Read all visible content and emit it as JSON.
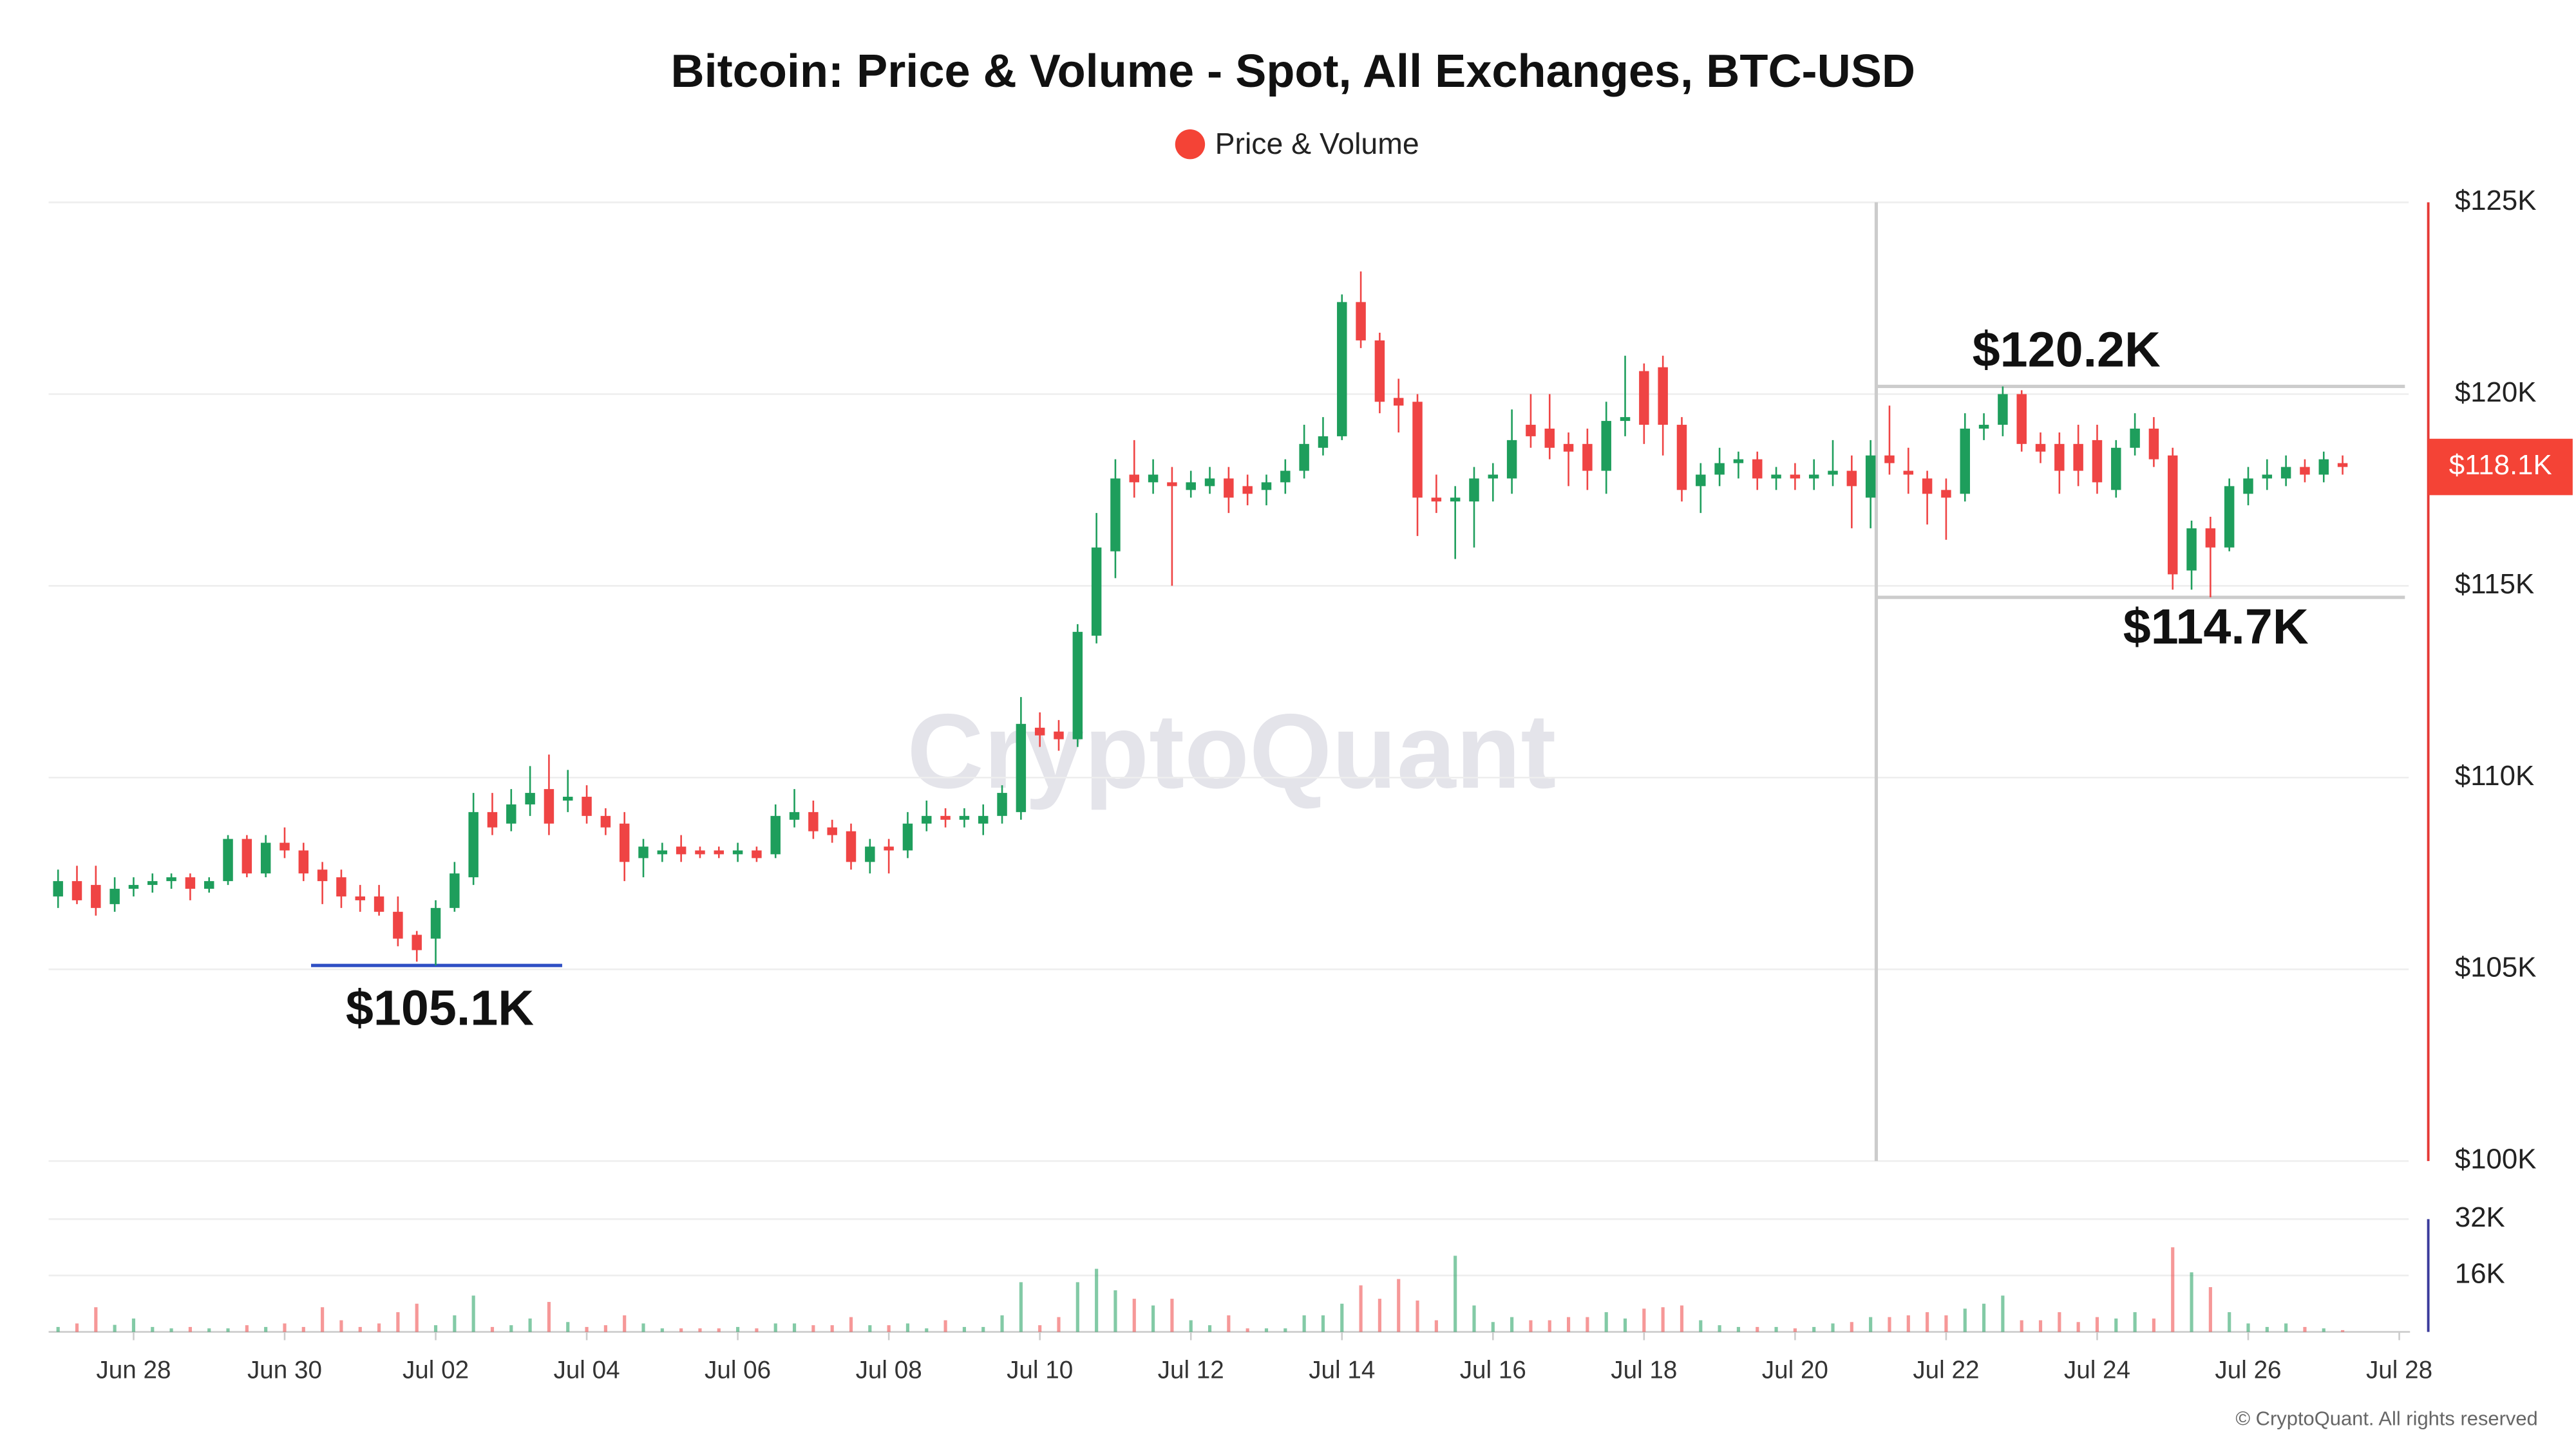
{
  "chart_data": {
    "type": "candlestick",
    "title": "Bitcoin: Price & Volume - Spot, All Exchanges, BTC-USD",
    "series": [
      {
        "name": "Price & Volume",
        "color": "#f44336",
        "up_color": "#1e9e5c",
        "down_color": "#ef4444",
        "open": [
          106.9,
          107.3,
          107.2,
          106.7,
          107.1,
          107.2,
          107.3,
          107.4,
          107.1,
          107.3,
          108.4,
          107.5,
          108.3,
          108.1,
          107.6,
          107.4,
          106.9,
          106.9,
          106.5,
          105.9,
          105.8,
          106.6,
          107.4,
          109.1,
          108.8,
          109.3,
          109.7,
          109.4,
          109.5,
          109.0,
          108.8,
          107.9,
          108.0,
          108.2,
          108.1,
          108.1,
          108.0,
          108.1,
          108.0,
          108.9,
          109.1,
          108.7,
          108.6,
          107.8,
          108.2,
          108.1,
          108.8,
          109.0,
          108.9,
          108.8,
          109.0,
          109.1,
          111.3,
          111.2,
          111.0,
          113.7,
          115.9,
          117.9,
          117.7,
          117.7,
          117.5,
          117.6,
          117.8,
          117.6,
          117.5,
          117.7,
          118.0,
          118.6,
          118.9,
          122.4,
          121.4,
          119.9,
          119.8,
          117.3,
          117.2,
          117.2,
          117.8,
          117.8,
          119.2,
          119.1,
          118.7,
          118.7,
          118.0,
          119.3,
          120.6,
          120.7,
          119.2,
          117.6,
          117.9,
          118.2,
          118.3,
          117.8,
          117.9,
          117.8,
          117.9,
          118.0,
          117.3,
          118.4,
          118.0,
          117.8,
          117.5,
          117.4,
          119.1,
          119.2,
          120.0,
          118.7,
          118.7,
          118.7,
          118.8,
          117.5,
          118.6,
          119.1,
          118.4,
          115.4,
          116.5,
          116.0,
          117.4,
          117.8,
          117.8,
          118.1,
          117.9,
          118.2
        ],
        "high": [
          107.6,
          107.7,
          107.7,
          107.4,
          107.4,
          107.5,
          107.5,
          107.5,
          107.4,
          108.5,
          108.5,
          108.5,
          108.7,
          108.3,
          107.8,
          107.6,
          107.2,
          107.2,
          106.9,
          106.0,
          106.8,
          107.8,
          109.6,
          109.6,
          109.7,
          110.3,
          110.6,
          110.2,
          109.8,
          109.2,
          109.1,
          108.4,
          108.3,
          108.5,
          108.2,
          108.2,
          108.3,
          108.2,
          109.3,
          109.7,
          109.4,
          108.9,
          108.8,
          108.4,
          108.4,
          109.1,
          109.4,
          109.2,
          109.2,
          109.3,
          109.8,
          112.1,
          111.7,
          111.5,
          114.0,
          116.9,
          118.3,
          118.8,
          118.3,
          118.1,
          118.0,
          118.1,
          118.1,
          117.9,
          117.9,
          118.3,
          119.2,
          119.4,
          122.6,
          123.2,
          121.6,
          120.4,
          120.0,
          117.9,
          117.6,
          118.1,
          118.2,
          119.6,
          120.0,
          120.0,
          119.0,
          119.1,
          119.8,
          121.0,
          120.8,
          121.0,
          119.4,
          118.2,
          118.6,
          118.5,
          118.5,
          118.1,
          118.2,
          118.3,
          118.8,
          118.4,
          118.8,
          119.7,
          118.6,
          118.0,
          117.8,
          119.5,
          119.5,
          120.2,
          120.1,
          119.0,
          119.0,
          119.2,
          119.2,
          118.8,
          119.5,
          119.4,
          118.6,
          116.7,
          116.8,
          117.8,
          118.1,
          118.3,
          118.4,
          118.3,
          118.5,
          118.4
        ],
        "low": [
          106.6,
          106.7,
          106.4,
          106.5,
          106.9,
          107.0,
          107.1,
          106.8,
          107.0,
          107.2,
          107.4,
          107.4,
          107.9,
          107.3,
          106.7,
          106.6,
          106.5,
          106.4,
          105.6,
          105.2,
          105.1,
          106.5,
          107.2,
          108.5,
          108.6,
          109.0,
          108.5,
          109.1,
          108.8,
          108.5,
          107.3,
          107.4,
          107.8,
          107.8,
          107.9,
          107.9,
          107.8,
          107.8,
          107.9,
          108.7,
          108.4,
          108.3,
          107.6,
          107.5,
          107.5,
          107.9,
          108.6,
          108.7,
          108.7,
          108.5,
          108.8,
          108.9,
          110.8,
          110.7,
          110.8,
          113.5,
          115.2,
          117.3,
          117.4,
          115.0,
          117.3,
          117.4,
          116.9,
          117.1,
          117.1,
          117.4,
          117.8,
          118.4,
          118.8,
          121.2,
          119.5,
          119.0,
          116.3,
          116.9,
          115.7,
          116.0,
          117.2,
          117.4,
          118.6,
          118.3,
          117.6,
          117.5,
          117.4,
          118.9,
          118.7,
          118.4,
          117.2,
          116.9,
          117.6,
          117.8,
          117.5,
          117.5,
          117.5,
          117.5,
          117.6,
          116.5,
          116.5,
          117.9,
          117.4,
          116.6,
          116.2,
          117.2,
          118.8,
          118.9,
          118.5,
          118.2,
          117.4,
          117.6,
          117.4,
          117.3,
          118.4,
          118.1,
          114.9,
          114.9,
          114.7,
          115.9,
          117.1,
          117.5,
          117.6,
          117.7,
          117.7,
          117.9
        ],
        "close": [
          107.3,
          106.8,
          106.6,
          107.1,
          107.2,
          107.3,
          107.4,
          107.1,
          107.3,
          108.4,
          107.5,
          108.3,
          108.1,
          107.5,
          107.3,
          106.9,
          106.8,
          106.5,
          105.8,
          105.5,
          106.6,
          107.5,
          109.1,
          108.7,
          109.3,
          109.6,
          108.8,
          109.5,
          109.0,
          108.7,
          107.8,
          108.2,
          108.1,
          108.0,
          108.0,
          108.0,
          108.1,
          107.9,
          109.0,
          109.1,
          108.6,
          108.5,
          107.8,
          108.2,
          108.1,
          108.8,
          109.0,
          108.9,
          109.0,
          109.0,
          109.6,
          111.4,
          111.1,
          111.0,
          113.8,
          116.0,
          117.8,
          117.7,
          117.9,
          117.6,
          117.7,
          117.8,
          117.3,
          117.4,
          117.7,
          118.0,
          118.7,
          118.9,
          122.4,
          121.4,
          119.8,
          119.7,
          117.3,
          117.2,
          117.3,
          117.8,
          117.9,
          118.8,
          118.9,
          118.6,
          118.5,
          118.0,
          119.3,
          119.4,
          119.2,
          119.2,
          117.5,
          117.9,
          118.2,
          118.3,
          117.8,
          117.9,
          117.8,
          117.9,
          118.0,
          117.6,
          118.4,
          118.2,
          117.9,
          117.4,
          117.3,
          119.1,
          119.2,
          120.0,
          118.7,
          118.5,
          118.0,
          118.0,
          117.7,
          118.6,
          119.1,
          118.3,
          115.3,
          116.5,
          116.0,
          117.6,
          117.8,
          117.9,
          118.1,
          117.9,
          118.3,
          118.1
        ],
        "volume": [
          1.4,
          2.4,
          7,
          2,
          3.8,
          1.4,
          1,
          1.4,
          1,
          1,
          1.9,
          1.4,
          2.4,
          1.4,
          7,
          3.3,
          1.4,
          2.4,
          5.6,
          8,
          1.9,
          4.7,
          10.3,
          1.4,
          1.9,
          3.8,
          8.5,
          2.8,
          1.4,
          1.9,
          4.7,
          2.4,
          1,
          1,
          1,
          1,
          1.4,
          1,
          2.4,
          2.4,
          1.9,
          1.9,
          4.2,
          1.9,
          1.9,
          2.4,
          1,
          3.3,
          1.4,
          1.4,
          4.7,
          14.1,
          1.9,
          4.2,
          14.1,
          17.9,
          11.8,
          9.4,
          7.5,
          9.4,
          3.3,
          1.9,
          4.7,
          1,
          1,
          1,
          4.7,
          4.7,
          8,
          13.2,
          9.4,
          15,
          8.9,
          3.3,
          21.6,
          7.5,
          2.8,
          4.2,
          3.3,
          3.3,
          4.2,
          4.2,
          5.6,
          3.8,
          6.6,
          7,
          7.5,
          3.3,
          1.9,
          1.4,
          1.4,
          1.4,
          1,
          1.4,
          2.4,
          2.8,
          4.2,
          4.2,
          4.7,
          5.6,
          4.7,
          6.6,
          8,
          10.3,
          3.3,
          3.3,
          5.6,
          2.8,
          4.2,
          3.8,
          5.6,
          3.8,
          24,
          16.9,
          12.7,
          5.6,
          2.4,
          1.4,
          2.4,
          1.4,
          1,
          0.5
        ]
      }
    ],
    "xlim": [
      -0.5,
      124.5
    ],
    "xticks": [
      {
        "value": 4,
        "label": "Jun 28"
      },
      {
        "value": 12,
        "label": "Jun 30"
      },
      {
        "value": 20,
        "label": "Jul 02"
      },
      {
        "value": 28,
        "label": "Jul 04"
      },
      {
        "value": 36,
        "label": "Jul 06"
      },
      {
        "value": 44,
        "label": "Jul 08"
      },
      {
        "value": 52,
        "label": "Jul 10"
      },
      {
        "value": 60,
        "label": "Jul 12"
      },
      {
        "value": 68,
        "label": "Jul 14"
      },
      {
        "value": 76,
        "label": "Jul 16"
      },
      {
        "value": 84,
        "label": "Jul 18"
      },
      {
        "value": 92,
        "label": "Jul 20"
      },
      {
        "value": 100,
        "label": "Jul 22"
      },
      {
        "value": 108,
        "label": "Jul 24"
      },
      {
        "value": 116,
        "label": "Jul 26"
      },
      {
        "value": 124,
        "label": "Jul 28"
      }
    ],
    "ylim": [
      100,
      125
    ],
    "yticks": [
      {
        "value": 100,
        "label": "$100K"
      },
      {
        "value": 105,
        "label": "$105K"
      },
      {
        "value": 110,
        "label": "$110K"
      },
      {
        "value": 115,
        "label": "$115K"
      },
      {
        "value": 120,
        "label": "$120K"
      },
      {
        "value": 125,
        "label": "$125K"
      }
    ],
    "y2lim": [
      0,
      32
    ],
    "y2ticks": [
      {
        "value": 16,
        "label": "16K"
      },
      {
        "value": 32,
        "label": "32K"
      }
    ],
    "grid": true,
    "current_price": {
      "value": 118.1,
      "label": "$118.1K"
    },
    "annotations": [
      {
        "label": "$105.1K",
        "value": 105.1,
        "color": "#2f4fc4"
      },
      {
        "label": "$120.2K",
        "value": 120.2,
        "color": "#cccccc"
      },
      {
        "label": "$114.7K",
        "value": 114.7,
        "color": "#cccccc"
      }
    ],
    "watermark": "CryptoQuant",
    "footer": "© CryptoQuant. All rights reserved"
  }
}
